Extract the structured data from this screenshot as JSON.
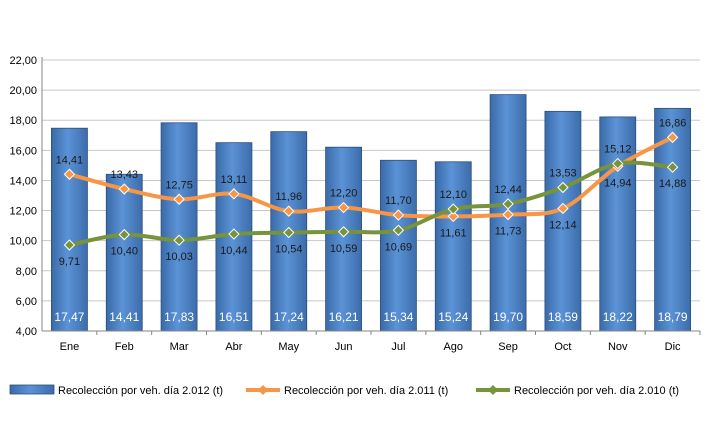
{
  "chart_data": {
    "type": "bar",
    "title": "",
    "xlabel": "",
    "ylabel": "",
    "categories": [
      "Ene",
      "Feb",
      "Mar",
      "Abr",
      "May",
      "Jun",
      "Jul",
      "Ago",
      "Sep",
      "Oct",
      "Nov",
      "Dic"
    ],
    "ylim": [
      4,
      22
    ],
    "yticks": [
      "4,00",
      "6,00",
      "8,00",
      "10,00",
      "12,00",
      "14,00",
      "16,00",
      "18,00",
      "20,00",
      "22,00"
    ],
    "grid": true,
    "legend_position": "bottom",
    "series": [
      {
        "name": "Recolección por veh. día 2.012 (t)",
        "type": "bar",
        "color": "#4f81bd",
        "values": [
          17.47,
          14.41,
          17.83,
          16.51,
          17.24,
          16.21,
          15.34,
          15.24,
          19.7,
          18.59,
          18.22,
          18.79
        ],
        "labels": [
          "17,47",
          "14,41",
          "17,83",
          "16,51",
          "17,24",
          "16,21",
          "15,34",
          "15,24",
          "19,70",
          "18,59",
          "18,22",
          "18,79"
        ]
      },
      {
        "name": "Recolección por veh. día 2.011 (t)",
        "type": "line",
        "color": "#f79646",
        "values": [
          14.41,
          13.43,
          12.75,
          13.11,
          11.96,
          12.2,
          11.7,
          11.61,
          11.73,
          12.14,
          14.94,
          16.86
        ],
        "labels": [
          "14,41",
          "13,43",
          "12,75",
          "13,11",
          "11,96",
          "12,20",
          "11,70",
          "11,61",
          "11,73",
          "12,14",
          "14,94",
          "16,86"
        ]
      },
      {
        "name": "Recolección por veh. día 2.010 (t)",
        "type": "line",
        "color": "#77933c",
        "values": [
          9.71,
          10.4,
          10.03,
          10.44,
          10.54,
          10.59,
          10.69,
          12.1,
          12.44,
          13.53,
          15.12,
          14.88
        ],
        "labels": [
          "9,71",
          "10,40",
          "10,03",
          "10,44",
          "10,54",
          "10,59",
          "10,69",
          "12,10",
          "12,44",
          "13,53",
          "15,12",
          "14,88"
        ]
      }
    ]
  }
}
